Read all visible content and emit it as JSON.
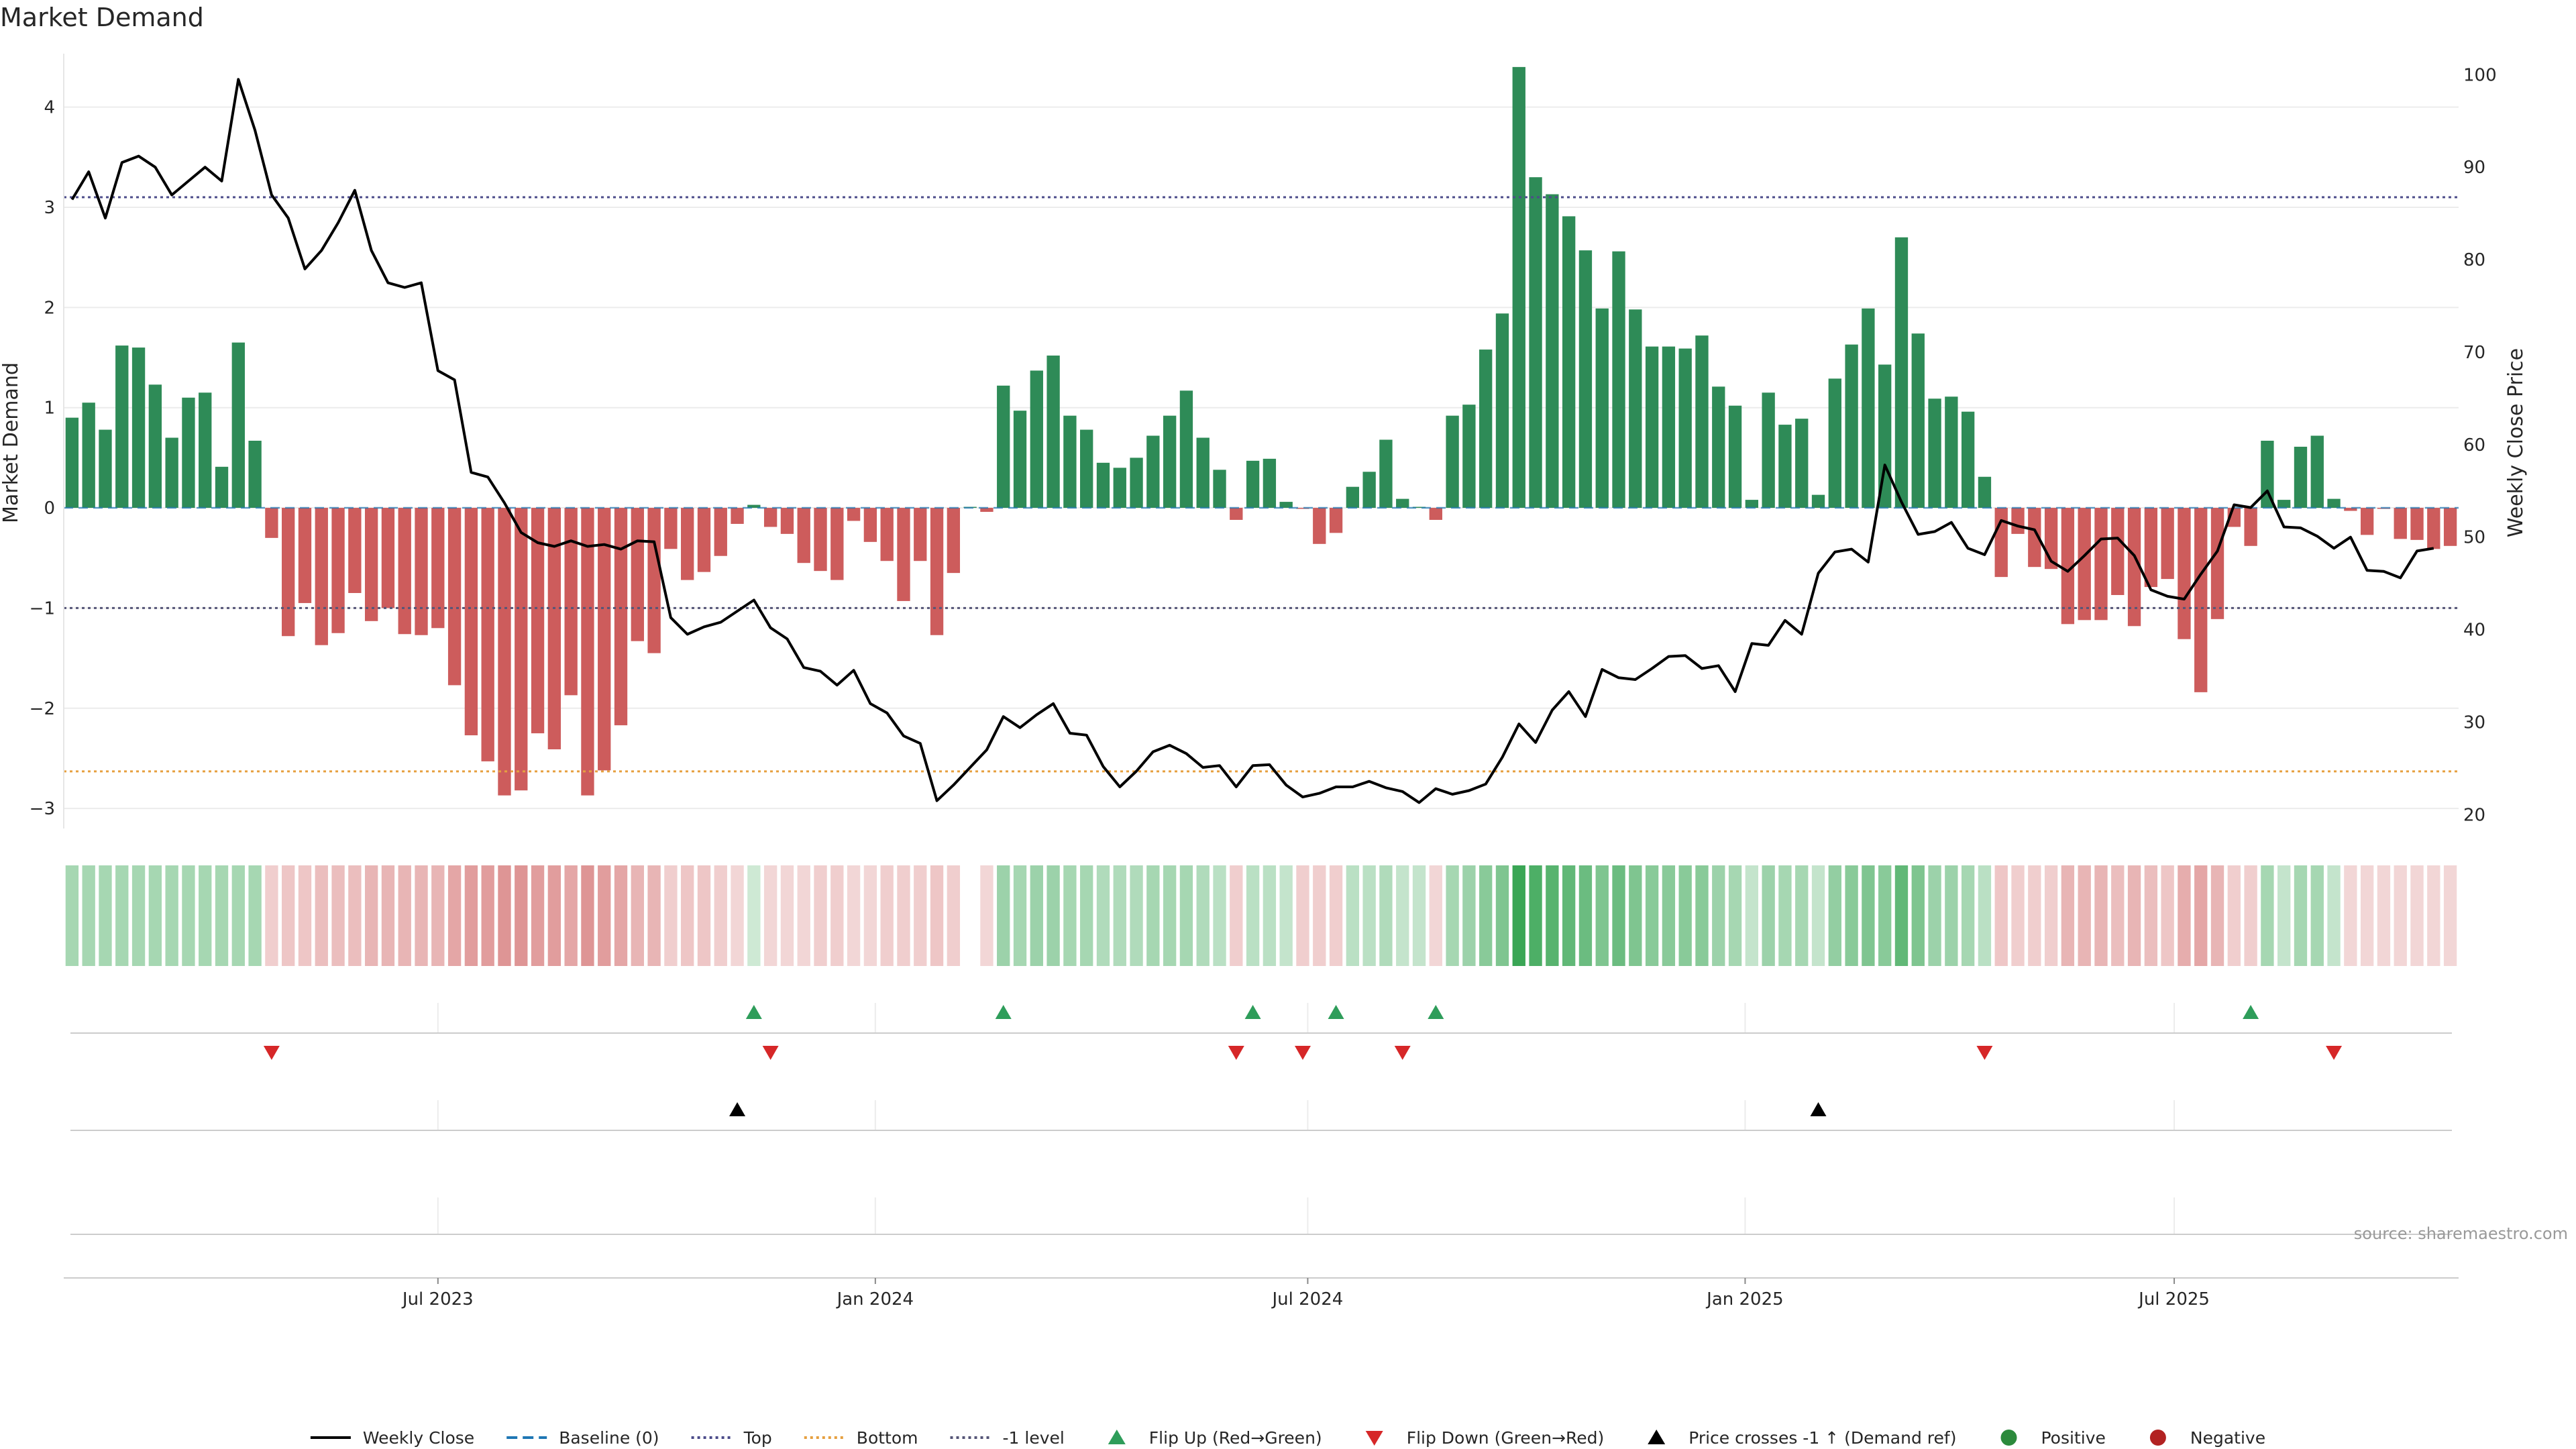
{
  "chart_data": {
    "type": "bar",
    "title": "Market Demand",
    "ylabel_left": "Market Demand",
    "ylabel_right": "Weekly Close Price",
    "ylim_left": [
      -3.2,
      4.6
    ],
    "ylim_right": [
      18.5,
      103
    ],
    "yticks_left": [
      -3,
      -2,
      -1,
      0,
      1,
      2,
      3,
      4
    ],
    "yticks_left_labels": [
      "−3",
      "−2",
      "−1",
      "0",
      "1",
      "2",
      "3",
      "4"
    ],
    "yticks_right": [
      20,
      30,
      40,
      50,
      60,
      70,
      80,
      90,
      100
    ],
    "yticks_right_labels": [
      "20",
      "30",
      "40",
      "50",
      "60",
      "70",
      "80",
      "90",
      "100"
    ],
    "x_start_week": 0,
    "week_count": 144,
    "date_ticks": [
      {
        "label": "Jul 2023",
        "week": 22
      },
      {
        "label": "Jan 2024",
        "week": 48.3
      },
      {
        "label": "Jul 2024",
        "week": 74.3
      },
      {
        "label": "Jan 2025",
        "week": 100.6
      },
      {
        "label": "Jul 2025",
        "week": 126.4
      }
    ],
    "demand": [
      0.9,
      1.05,
      0.78,
      1.62,
      1.6,
      1.23,
      0.7,
      1.1,
      1.15,
      0.41,
      1.65,
      0.67,
      -0.3,
      -1.28,
      -0.95,
      -1.37,
      -1.25,
      -0.85,
      -1.13,
      -1.0,
      -1.26,
      -1.27,
      -1.2,
      -1.77,
      -2.27,
      -2.53,
      -2.87,
      -2.82,
      -2.25,
      -2.41,
      -1.87,
      -2.87,
      -2.62,
      -2.17,
      -1.33,
      -1.45,
      -0.41,
      -0.72,
      -0.64,
      -0.48,
      -0.16,
      0.03,
      -0.19,
      -0.26,
      -0.55,
      -0.63,
      -0.72,
      -0.13,
      -0.34,
      -0.53,
      -0.93,
      -0.53,
      -1.27,
      -0.65,
      0.01,
      -0.04,
      1.22,
      0.97,
      1.37,
      1.52,
      0.92,
      0.78,
      0.45,
      0.4,
      0.5,
      0.72,
      0.92,
      1.17,
      0.7,
      0.38,
      -0.12,
      0.47,
      0.49,
      0.06,
      -0.01,
      -0.36,
      -0.25,
      0.21,
      0.36,
      0.68,
      0.09,
      0.01,
      -0.12,
      0.92,
      1.03,
      1.58,
      1.94,
      4.4,
      3.3,
      3.13,
      2.91,
      2.57,
      1.99,
      2.56,
      1.98,
      1.61,
      1.61,
      1.59,
      1.72,
      1.21,
      1.02,
      0.08,
      1.15,
      0.83,
      0.89,
      0.13,
      1.29,
      1.63,
      1.99,
      1.43,
      2.7,
      1.74,
      1.09,
      1.11,
      0.96,
      0.31,
      -0.69,
      -0.26,
      -0.59,
      -0.61,
      -1.16,
      -1.12,
      -1.12,
      -0.87,
      -1.18,
      -0.79,
      -0.71,
      -1.31,
      -1.84,
      -1.11,
      -0.19,
      -0.38,
      0.67,
      0.08,
      0.61,
      0.72,
      0.09,
      -0.03,
      -0.27,
      -0.01,
      -0.31,
      -0.32,
      -0.41,
      -0.38
    ],
    "intensity": [
      0.45,
      0.45,
      0.45,
      0.45,
      0.45,
      0.45,
      0.45,
      0.45,
      0.45,
      0.45,
      0.45,
      0.45,
      0.3,
      0.35,
      0.35,
      0.4,
      0.4,
      0.4,
      0.45,
      0.45,
      0.45,
      0.45,
      0.45,
      0.55,
      0.6,
      0.6,
      0.65,
      0.65,
      0.6,
      0.6,
      0.55,
      0.65,
      0.6,
      0.55,
      0.45,
      0.45,
      0.3,
      0.35,
      0.35,
      0.3,
      0.25,
      0.25,
      0.25,
      0.25,
      0.25,
      0.3,
      0.3,
      0.25,
      0.25,
      0.3,
      0.3,
      0.3,
      0.35,
      0.3,
      0,
      0.25,
      0.5,
      0.45,
      0.5,
      0.5,
      0.45,
      0.45,
      0.4,
      0.4,
      0.4,
      0.45,
      0.45,
      0.45,
      0.4,
      0.35,
      0.3,
      0.35,
      0.35,
      0.3,
      0.3,
      0.3,
      0.3,
      0.35,
      0.35,
      0.4,
      0.3,
      0.3,
      0.25,
      0.45,
      0.5,
      0.6,
      0.65,
      1.0,
      0.9,
      0.85,
      0.8,
      0.75,
      0.65,
      0.75,
      0.65,
      0.6,
      0.6,
      0.6,
      0.6,
      0.5,
      0.45,
      0.3,
      0.5,
      0.45,
      0.45,
      0.3,
      0.55,
      0.6,
      0.65,
      0.6,
      0.8,
      0.65,
      0.5,
      0.5,
      0.45,
      0.35,
      0.35,
      0.3,
      0.3,
      0.3,
      0.45,
      0.45,
      0.45,
      0.4,
      0.45,
      0.4,
      0.35,
      0.5,
      0.55,
      0.45,
      0.3,
      0.3,
      0.45,
      0.3,
      0.45,
      0.45,
      0.3,
      0.25,
      0.25,
      0.25,
      0.25,
      0.25,
      0.25,
      0.25
    ],
    "price": [
      86.5,
      89.5,
      84.5,
      90.5,
      91.2,
      90,
      87,
      88.5,
      90,
      88.5,
      99.5,
      94,
      87,
      84.5,
      79,
      81,
      84,
      87.5,
      81,
      77.5,
      77,
      77.5,
      68,
      67,
      57,
      56.5,
      53.7,
      50.5,
      49.4,
      49,
      49.6,
      49,
      49.2,
      48.7,
      49.6,
      49.5,
      41.3,
      39.5,
      40.3,
      40.8,
      42,
      43.2,
      40.2,
      39,
      35.9,
      35.5,
      34,
      35.6,
      32,
      31,
      28.5,
      27.7,
      21.5,
      23.2,
      25.1,
      27,
      30.6,
      29.4,
      30.8,
      32,
      28.8,
      28.6,
      25.2,
      23,
      24.7,
      26.8,
      27.5,
      26.6,
      25.1,
      25.3,
      23,
      25.3,
      25.4,
      23.2,
      21.9,
      22.3,
      23,
      23,
      23.6,
      22.9,
      22.5,
      21.3,
      22.8,
      22.2,
      22.6,
      23.3,
      26.2,
      29.8,
      27.8,
      31.3,
      33.3,
      30.6,
      35.7,
      34.8,
      34.6,
      35.8,
      37.1,
      37.2,
      35.8,
      36.1,
      33.3,
      38.5,
      38.3,
      41,
      39.5,
      46.1,
      48.4,
      48.7,
      47.3,
      57.8,
      53.8,
      50.3,
      50.6,
      51.6,
      48.8,
      48.1,
      51.8,
      51.2,
      50.8,
      47.4,
      46.3,
      48,
      49.8,
      49.9,
      48,
      44.3,
      43.6,
      43.3,
      46,
      48.5,
      53.5,
      53.2,
      55,
      51.1,
      51,
      50.1,
      48.8,
      50,
      46.4,
      46.3,
      45.6,
      48.5,
      48.8
    ],
    "levels": {
      "top": 3.1,
      "bottom": -2.63,
      "minus_one": -1.0,
      "baseline": 0
    },
    "flip_up_weeks": [
      41,
      56,
      71,
      76,
      82,
      131
    ],
    "flip_down_weeks": [
      12,
      42,
      70,
      74,
      80,
      115,
      136
    ],
    "price_cross_weeks": [
      40,
      105
    ],
    "source": "source: sharemaestro.com",
    "legend": [
      {
        "label": "Weekly Close",
        "kind": "line",
        "color": "#000000"
      },
      {
        "label": "Baseline (0)",
        "kind": "dash",
        "color": "#1f77b4"
      },
      {
        "label": "Top",
        "kind": "dot",
        "color": "#4c4c8a"
      },
      {
        "label": "Bottom",
        "kind": "dot",
        "color": "#e6a040"
      },
      {
        "label": "-1 level",
        "kind": "dot",
        "color": "#555577"
      },
      {
        "label": "Flip Up (Red→Green)",
        "kind": "tri-up",
        "color": "#2e9d5a"
      },
      {
        "label": "Flip Down (Green→Red)",
        "kind": "tri-down",
        "color": "#d62728"
      },
      {
        "label": "Price crosses -1 ↑ (Demand ref)",
        "kind": "tri-up",
        "color": "#000000"
      },
      {
        "label": "Positive",
        "kind": "dot-marker",
        "color": "#2c8a3c"
      },
      {
        "label": "Negative",
        "kind": "dot-marker",
        "color": "#b22222"
      }
    ],
    "colors": {
      "positive": "#2e8b57",
      "negative": "#cd5c5c",
      "heat_positive": "#3aa655",
      "heat_negative": "#cd5c5c"
    }
  }
}
